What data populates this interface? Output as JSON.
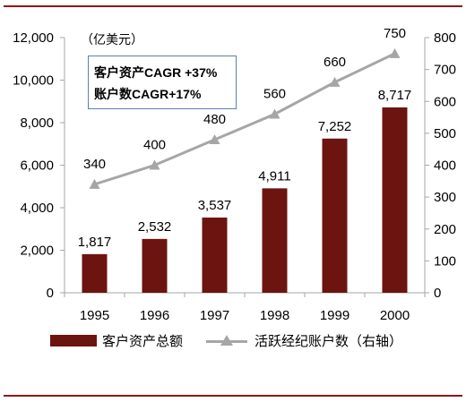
{
  "colors": {
    "bar": "#6b1410",
    "line": "#a6a6a6",
    "axis": "#a6a6a6",
    "rule": "#8b1a1a",
    "box_border": "#5b7fb5"
  },
  "unit_label": "（亿美元）",
  "annotation": {
    "line1": "客户资产CAGR +37%",
    "line2": "账户数CAGR+17%"
  },
  "legend": {
    "bar_label": "客户资产总额",
    "line_label": "活跃经纪账户数（右轴）"
  },
  "chart_data": {
    "type": "bar",
    "categories": [
      "1995",
      "1996",
      "1997",
      "1998",
      "1999",
      "2000"
    ],
    "series": [
      {
        "name": "客户资产总额",
        "type": "bar",
        "axis": "left",
        "values": [
          1817,
          2532,
          3537,
          4911,
          7252,
          8717
        ],
        "labels": [
          "1,817",
          "2,532",
          "3,537",
          "4,911",
          "7,252",
          "8,717"
        ]
      },
      {
        "name": "活跃经纪账户数（右轴）",
        "type": "line",
        "axis": "right",
        "values": [
          340,
          400,
          480,
          560,
          660,
          750
        ],
        "labels": [
          "340",
          "400",
          "480",
          "560",
          "660",
          "750"
        ]
      }
    ],
    "y_left": {
      "lim": [
        0,
        12000
      ],
      "ticks": [
        "0",
        "2,000",
        "4,000",
        "6,000",
        "8,000",
        "10,000",
        "12,000"
      ]
    },
    "y_right": {
      "lim": [
        0,
        800
      ],
      "ticks": [
        "0",
        "100",
        "200",
        "300",
        "400",
        "500",
        "600",
        "700",
        "800"
      ]
    },
    "grid": false,
    "legend_position": "bottom"
  }
}
